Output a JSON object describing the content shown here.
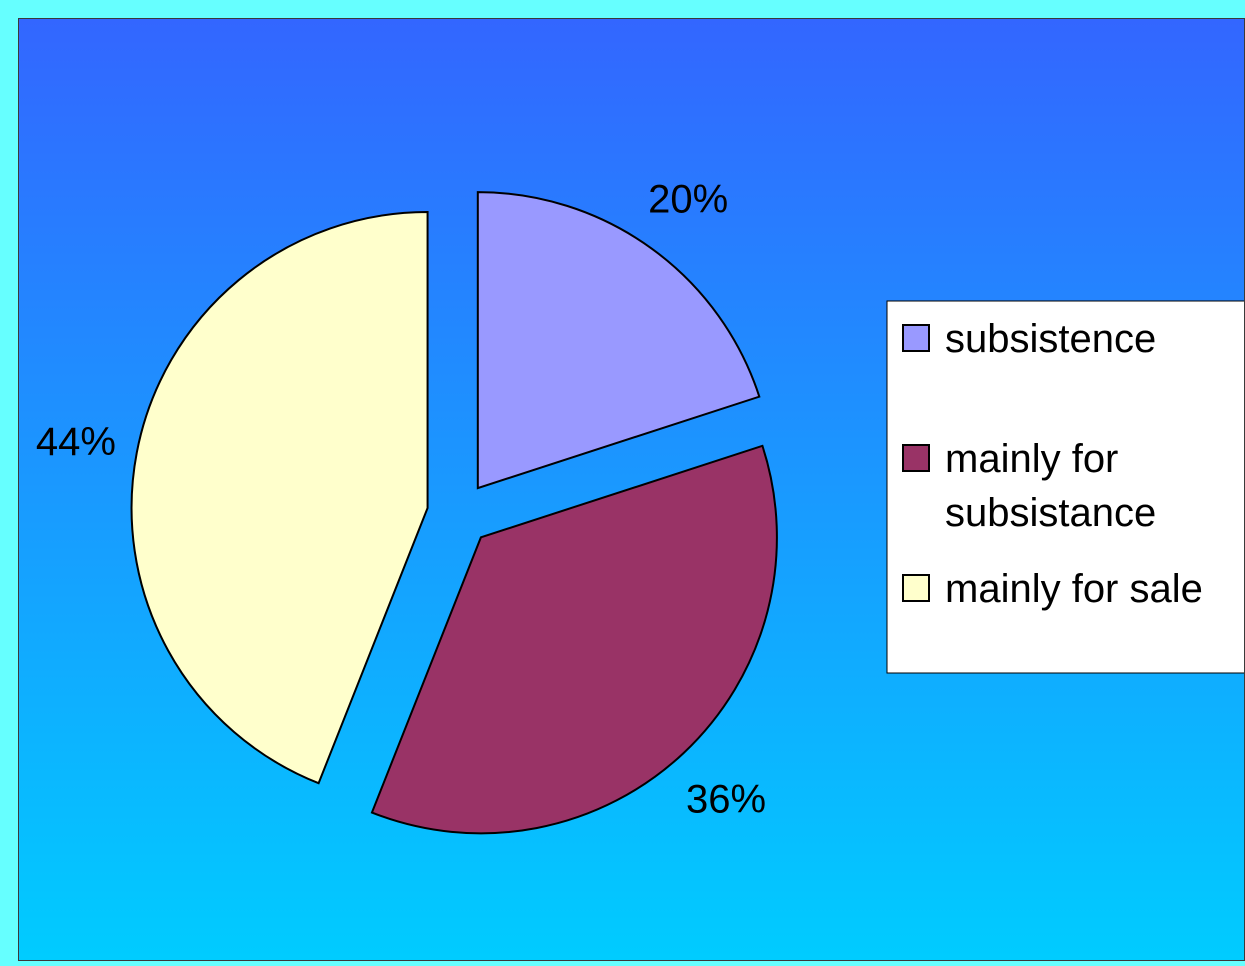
{
  "colors": {
    "frame": "#66ffff",
    "background_top": "#3366ff",
    "background_bottom": "#00ccff",
    "legend_bg": "#ffffff",
    "slice_outline": "#000000"
  },
  "chart_data": {
    "type": "pie",
    "title": "",
    "start_angle_deg": 0,
    "direction": "clockwise",
    "exploded": true,
    "legend_position": "right",
    "slices": [
      {
        "label": "subsistence",
        "value": 20,
        "display": "20%",
        "color": "#9999ff"
      },
      {
        "label": "mainly for subsistance",
        "value": 36,
        "display": "36%",
        "color": "#993366"
      },
      {
        "label": "mainly for sale",
        "value": 44,
        "display": "44%",
        "color": "#ffffcc"
      }
    ],
    "legend": [
      {
        "lines": [
          "subsistence"
        ],
        "color": "#9999ff"
      },
      {
        "lines": [
          "mainly for",
          "subsistance"
        ],
        "color": "#993366"
      },
      {
        "lines": [
          "mainly for sale"
        ],
        "color": "#ffffcc"
      }
    ]
  }
}
